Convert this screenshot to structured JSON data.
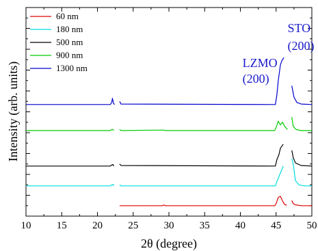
{
  "chart_data": {
    "type": "line",
    "title": "",
    "xlabel": "2θ (degree)",
    "ylabel": "Intensity (arb. units)",
    "xlim": [
      10,
      50
    ],
    "x_ticks": [
      10,
      15,
      20,
      25,
      30,
      35,
      40,
      45,
      50
    ],
    "y_ticks_shown": false,
    "grid": false,
    "legend_position": "top-left",
    "series": [
      {
        "name": "60 nm",
        "color": "#e00000",
        "baseline": 1.0,
        "segments": [
          [
            [
              23.1,
              1.0
            ],
            [
              29.0,
              1.0
            ],
            [
              29.3,
              1.06
            ],
            [
              29.5,
              1.0
            ],
            [
              44.8,
              1.0
            ],
            [
              45.0,
              1.2
            ],
            [
              45.3,
              1.8
            ],
            [
              45.6,
              1.9
            ],
            [
              45.9,
              1.45
            ],
            [
              46.2,
              1.1
            ],
            [
              46.5,
              1.05
            ]
          ],
          [
            [
              47.2,
              1.5
            ],
            [
              47.4,
              1.2
            ],
            [
              47.7,
              1.08
            ],
            [
              48.5,
              1.0
            ],
            [
              50,
              1.0
            ]
          ]
        ]
      },
      {
        "name": "180 nm",
        "color": "#00dddd",
        "baseline": 2.9,
        "segments": [
          [
            [
              10,
              2.9
            ],
            [
              21.8,
              2.9
            ],
            [
              22.0,
              3.0
            ],
            [
              22.15,
              3.05
            ],
            [
              22.3,
              2.9
            ]
          ],
          [
            [
              23.1,
              3.0
            ],
            [
              23.3,
              2.9
            ],
            [
              44.9,
              2.9
            ],
            [
              45.1,
              3.3
            ],
            [
              45.4,
              3.8
            ],
            [
              45.7,
              4.3
            ],
            [
              46.0,
              4.8
            ]
          ],
          [
            [
              47.2,
              5.5
            ],
            [
              47.4,
              5.0
            ],
            [
              47.7,
              3.4
            ],
            [
              48.2,
              3.0
            ],
            [
              49.0,
              2.9
            ],
            [
              50,
              2.9
            ]
          ]
        ]
      },
      {
        "name": "500 nm",
        "color": "#000000",
        "baseline": 4.8,
        "segments": [
          [
            [
              10,
              4.8
            ],
            [
              21.8,
              4.8
            ],
            [
              22.0,
              4.9
            ],
            [
              22.15,
              4.95
            ],
            [
              22.3,
              4.8
            ]
          ],
          [
            [
              23.1,
              5.0
            ],
            [
              23.3,
              4.85
            ],
            [
              44.9,
              4.8
            ],
            [
              45.1,
              5.4
            ],
            [
              45.4,
              5.9
            ],
            [
              45.6,
              6.5
            ],
            [
              45.8,
              6.7
            ],
            [
              46.0,
              6.9
            ]
          ],
          [
            [
              47.2,
              6.3
            ],
            [
              47.4,
              5.6
            ],
            [
              47.7,
              5.1
            ],
            [
              48.5,
              4.85
            ],
            [
              50,
              4.8
            ]
          ]
        ]
      },
      {
        "name": "900 nm",
        "color": "#00cc00",
        "baseline": 8.2,
        "segments": [
          [
            [
              10,
              8.2
            ],
            [
              21.8,
              8.2
            ],
            [
              22.0,
              8.3
            ],
            [
              22.15,
              8.3
            ],
            [
              22.3,
              8.2
            ]
          ],
          [
            [
              23.1,
              8.3
            ],
            [
              23.3,
              8.2
            ],
            [
              29.3,
              8.25
            ],
            [
              29.5,
              8.2
            ],
            [
              44.8,
              8.2
            ],
            [
              45.0,
              8.5
            ],
            [
              45.3,
              9.1
            ],
            [
              45.6,
              8.75
            ],
            [
              45.9,
              9.0
            ],
            [
              46.2,
              8.6
            ],
            [
              46.6,
              8.3
            ]
          ],
          [
            [
              47.2,
              9.5
            ],
            [
              47.4,
              8.6
            ],
            [
              47.8,
              8.3
            ],
            [
              48.5,
              8.2
            ],
            [
              50,
              8.2
            ]
          ]
        ]
      },
      {
        "name": "1300 nm",
        "color": "#0000cc",
        "baseline": 10.7,
        "segments": [
          [
            [
              10,
              10.7
            ],
            [
              21.8,
              10.7
            ],
            [
              22.0,
              10.9
            ],
            [
              22.1,
              11.3
            ],
            [
              22.25,
              10.8
            ],
            [
              22.4,
              10.7
            ]
          ],
          [
            [
              23.1,
              11.0
            ],
            [
              23.3,
              10.75
            ],
            [
              44.9,
              10.7
            ],
            [
              45.1,
              11.6
            ],
            [
              45.3,
              13.0
            ],
            [
              45.6,
              14.5
            ],
            [
              45.8,
              14.9
            ],
            [
              46.1,
              15.2
            ]
          ],
          [
            [
              47.2,
              12.5
            ],
            [
              47.5,
              11.4
            ],
            [
              47.9,
              10.9
            ],
            [
              48.5,
              10.75
            ],
            [
              50,
              10.7
            ]
          ]
        ]
      }
    ],
    "annotations": [
      {
        "lines": [
          "LZMO",
          "(200)"
        ],
        "x": 40.3,
        "color": "#1a1acc"
      },
      {
        "lines": [
          "STO",
          "(200)"
        ],
        "x": 46.6,
        "color": "#1a1acc"
      }
    ]
  }
}
